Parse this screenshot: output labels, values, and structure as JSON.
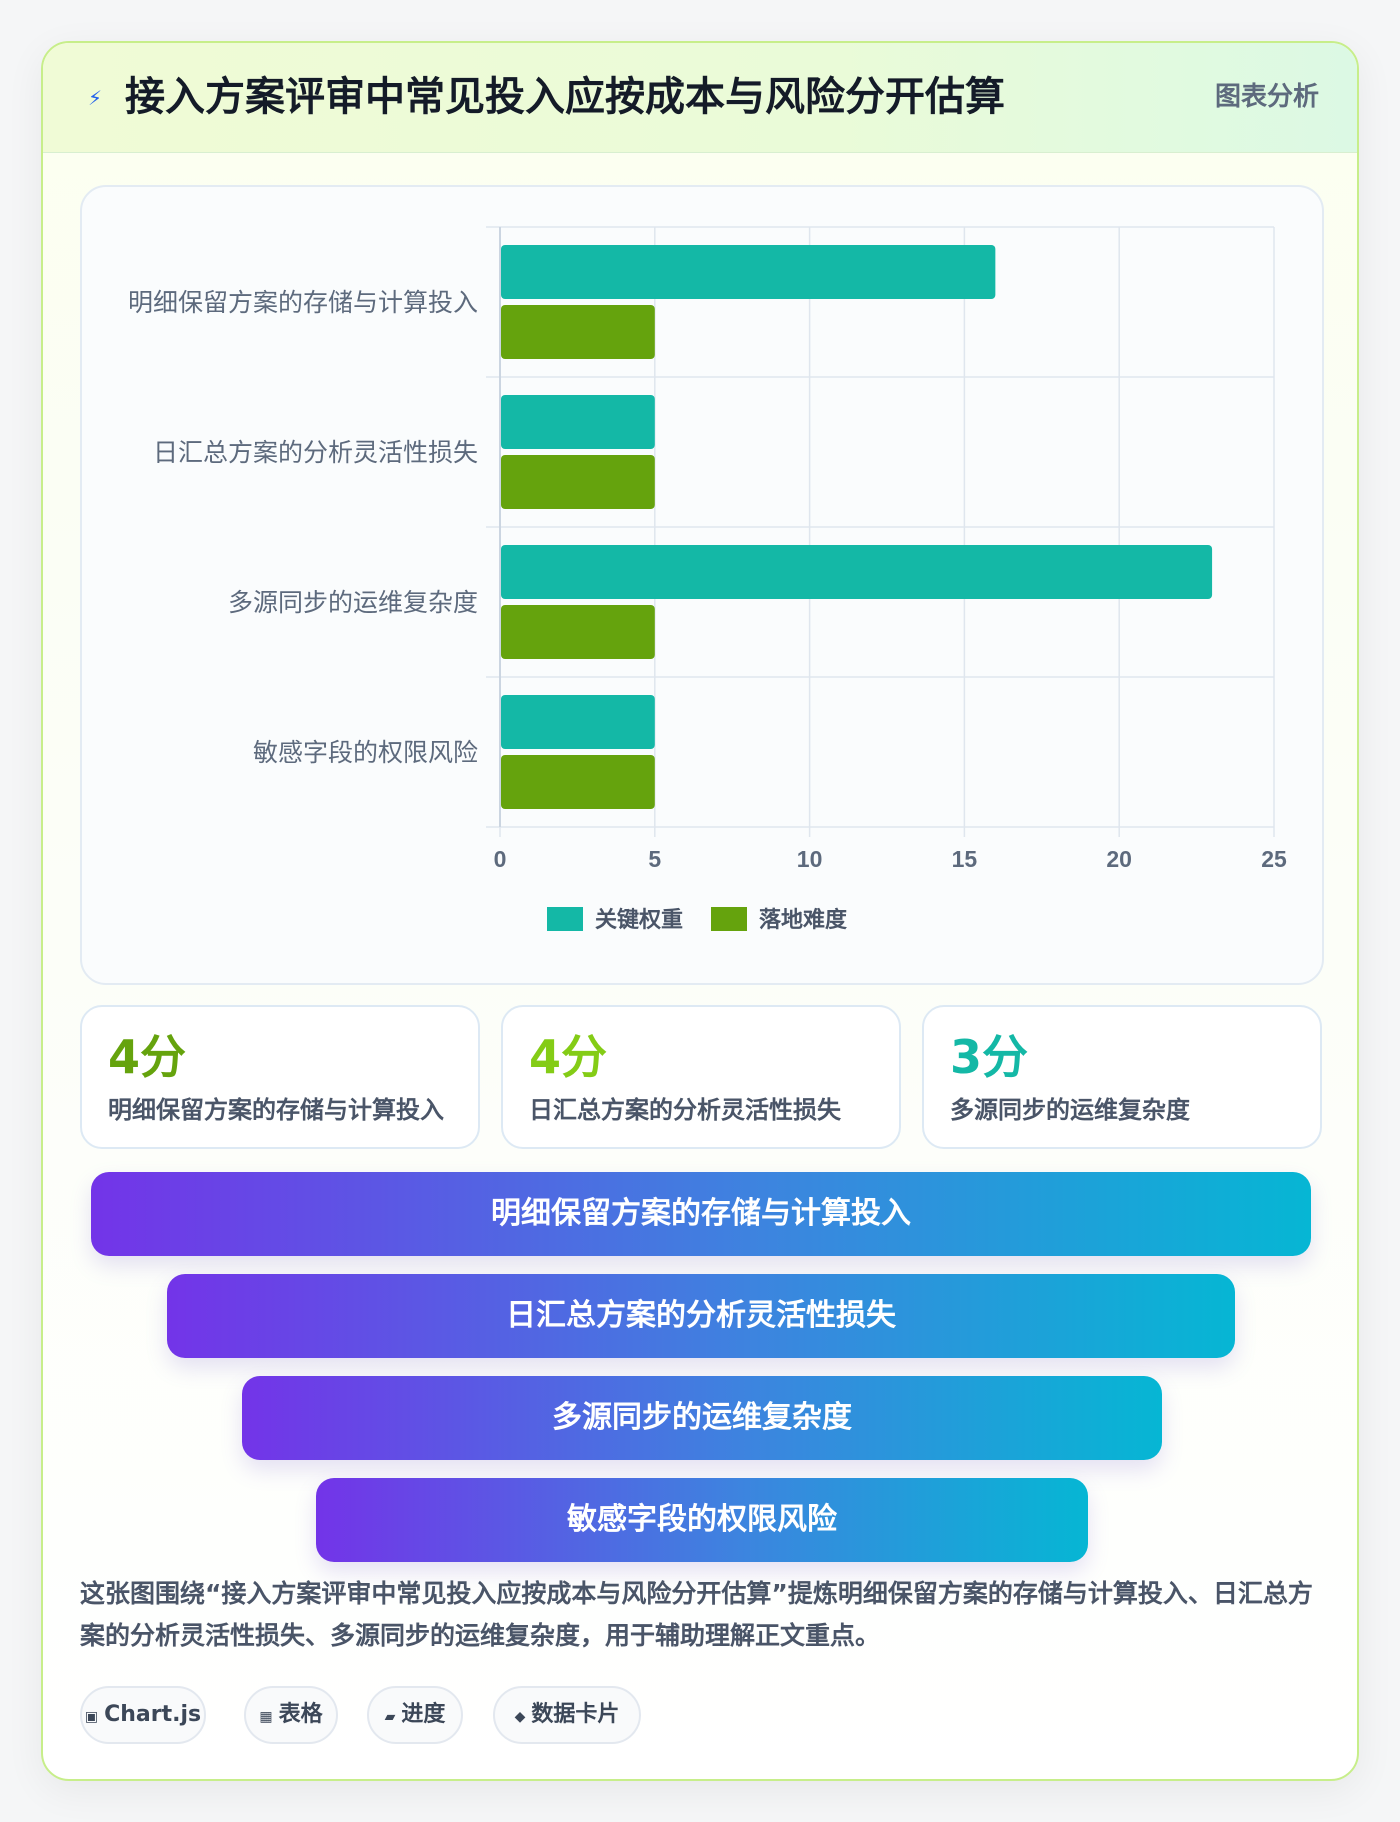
{
  "header": {
    "icon": "lightning-icon",
    "title": "接入方案评审中常见投入应按成本与风险分开估算",
    "tag": "图表分析"
  },
  "chart_data": {
    "type": "bar",
    "orientation": "horizontal",
    "categories": [
      "明细保留方案的存储与计算投入",
      "日汇总方案的分析灵活性损失",
      "多源同步的运维复杂度",
      "敏感字段的权限风险"
    ],
    "series": [
      {
        "name": "关键权重",
        "values": [
          16,
          5,
          23,
          5
        ],
        "color": "#14b8a6"
      },
      {
        "name": "落地难度",
        "values": [
          5,
          5,
          5,
          5
        ],
        "color": "#65a30d"
      }
    ],
    "xlim": [
      0,
      25
    ],
    "xticks": [
      "0",
      "5",
      "10",
      "15",
      "20",
      "25"
    ],
    "grid": true,
    "legend_position": "bottom"
  },
  "stats": [
    {
      "value": "4分",
      "label": "明细保留方案的存储与计算投入",
      "color": "#65a30d"
    },
    {
      "value": "4分",
      "label": "日汇总方案的分析灵活性损失",
      "color": "#84cc16"
    },
    {
      "value": "3分",
      "label": "多源同步的运维复杂度",
      "color": "#14b8a6"
    }
  ],
  "funnel": [
    {
      "label": "明细保留方案的存储与计算投入"
    },
    {
      "label": "日汇总方案的分析灵活性损失"
    },
    {
      "label": "多源同步的运维复杂度"
    },
    {
      "label": "敏感字段的权限风险"
    }
  ],
  "summary": "这张图围绕“接入方案评审中常见投入应按成本与风险分开估算”提炼明细保留方案的存储与计算投入、日汇总方案的分析灵活性损失、多源同步的运维复杂度，用于辅助理解正文重点。",
  "tags": [
    {
      "icon": "chart-icon",
      "glyph": "▣",
      "label": "Chart.js"
    },
    {
      "icon": "table-icon",
      "glyph": "▦",
      "label": "表格"
    },
    {
      "icon": "progress-icon",
      "glyph": "▰",
      "label": "进度"
    },
    {
      "icon": "data-card-icon",
      "glyph": "◆",
      "label": "数据卡片"
    }
  ]
}
